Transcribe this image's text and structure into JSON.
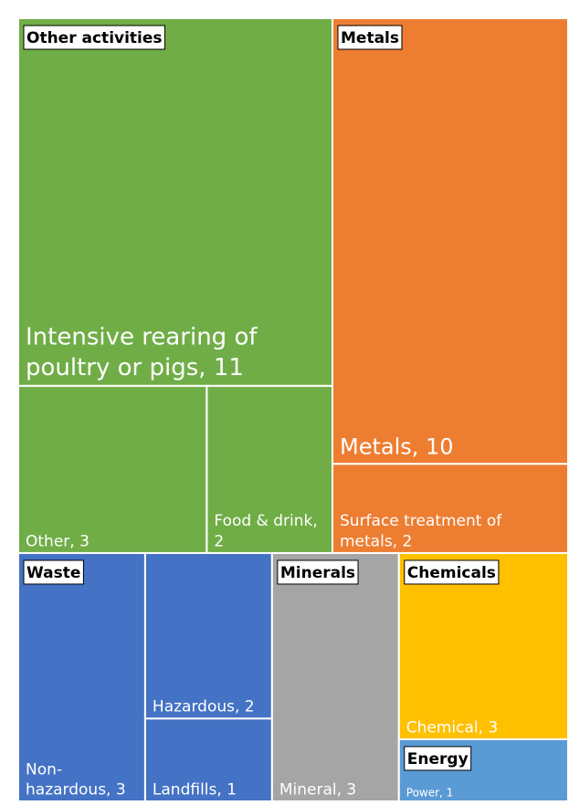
{
  "chart_data": {
    "type": "treemap",
    "groups": [
      {
        "name": "Other activities",
        "color": "#70ad47",
        "items": [
          {
            "label": "Intensive rearing of poultry or pigs, 11",
            "value": 11
          },
          {
            "label": "Other, 3",
            "value": 3
          },
          {
            "label": "Food & drink, 2",
            "value": 2
          }
        ]
      },
      {
        "name": "Metals",
        "color": "#ed7d31",
        "items": [
          {
            "label": "Metals, 10",
            "value": 10
          },
          {
            "label": "Surface treatment of metals, 2",
            "value": 2
          }
        ]
      },
      {
        "name": "Waste",
        "color": "#4472c4",
        "items": [
          {
            "label": "Non-hazardous, 3",
            "value": 3
          },
          {
            "label": "Hazardous, 2",
            "value": 2
          },
          {
            "label": "Landfills, 1",
            "value": 1
          }
        ]
      },
      {
        "name": "Minerals",
        "color": "#a5a5a5",
        "items": [
          {
            "label": "Mineral, 3",
            "value": 3
          }
        ]
      },
      {
        "name": "Chemicals",
        "color": "#ffc000",
        "items": [
          {
            "label": "Chemical, 3",
            "value": 3
          }
        ]
      },
      {
        "name": "Energy",
        "color": "#5b9bd5",
        "items": [
          {
            "label": "Power, 1",
            "value": 1
          }
        ]
      }
    ]
  }
}
